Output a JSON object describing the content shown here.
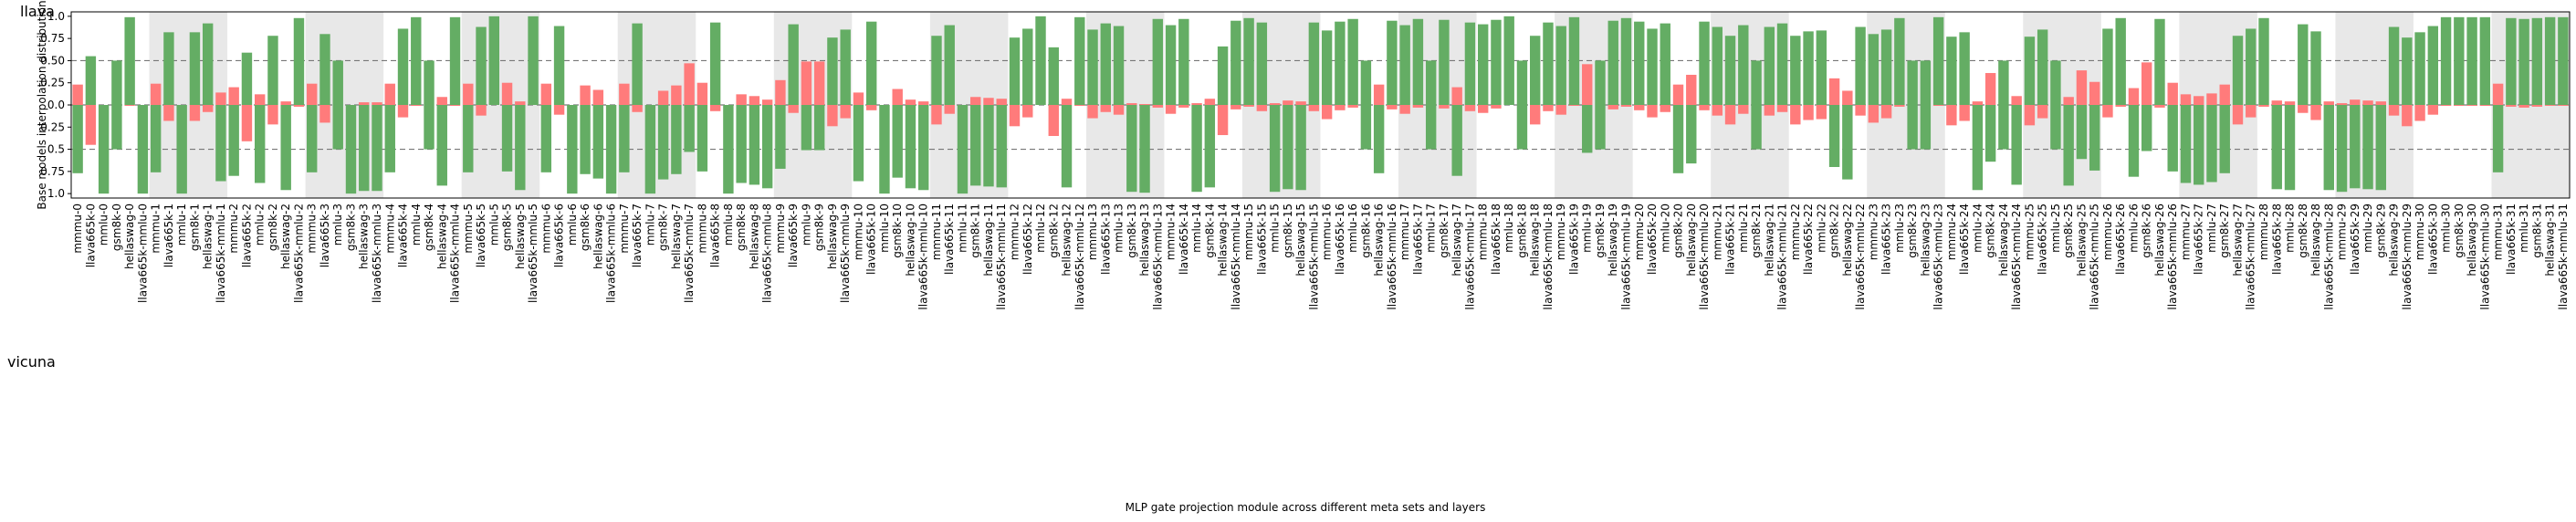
{
  "chart_data": {
    "type": "diverging_bar",
    "ylabel": "Base models interpolation distribution",
    "xlabel": "MLP gate projection module across different meta sets and layers",
    "categories": [
      "mmmu-0",
      "llava665k-0",
      "mmlu-0",
      "gsm8k-0",
      "hellaswag-0",
      "llava665k-mmlu-0",
      "mmmu-1",
      "llava665k-1",
      "mmlu-1",
      "gsm8k-1",
      "hellaswag-1",
      "llava665k-mmlu-1",
      "mmmu-2",
      "llava665k-2",
      "mmlu-2",
      "gsm8k-2",
      "hellaswag-2",
      "llava665k-mmlu-2",
      "mmmu-3",
      "llava665k-3",
      "mmlu-3",
      "gsm8k-3",
      "hellaswag-3",
      "llava665k-mmlu-3",
      "mmmu-4",
      "llava665k-4",
      "mmlu-4",
      "gsm8k-4",
      "hellaswag-4",
      "llava665k-mmlu-4",
      "mmmu-5",
      "llava665k-5",
      "mmlu-5",
      "gsm8k-5",
      "hellaswag-5",
      "llava665k-mmlu-5",
      "mmmu-6",
      "llava665k-6",
      "mmlu-6",
      "gsm8k-6",
      "hellaswag-6",
      "llava665k-mmlu-6",
      "mmmu-7",
      "llava665k-7",
      "mmlu-7",
      "gsm8k-7",
      "hellaswag-7",
      "llava665k-mmlu-7",
      "mmmu-8",
      "llava665k-8",
      "mmlu-8",
      "gsm8k-8",
      "hellaswag-8",
      "llava665k-mmlu-8",
      "mmmu-9",
      "llava665k-9",
      "mmlu-9",
      "gsm8k-9",
      "hellaswag-9",
      "llava665k-mmlu-9",
      "mmmu-10",
      "llava665k-10",
      "mmlu-10",
      "gsm8k-10",
      "hellaswag-10",
      "llava665k-mmlu-10",
      "mmmu-11",
      "llava665k-11",
      "mmlu-11",
      "gsm8k-11",
      "hellaswag-11",
      "llava665k-mmlu-11",
      "mmmu-12",
      "llava665k-12",
      "mmlu-12",
      "gsm8k-12",
      "hellaswag-12",
      "llava665k-mmlu-12",
      "mmmu-13",
      "llava665k-13",
      "mmlu-13",
      "gsm8k-13",
      "hellaswag-13",
      "llava665k-mmlu-13",
      "mmmu-14",
      "llava665k-14",
      "mmlu-14",
      "gsm8k-14",
      "hellaswag-14",
      "llava665k-mmlu-14",
      "mmmu-15",
      "llava665k-15",
      "mmlu-15",
      "gsm8k-15",
      "hellaswag-15",
      "llava665k-mmlu-15",
      "mmmu-16",
      "llava665k-16",
      "mmlu-16",
      "gsm8k-16",
      "hellaswag-16",
      "llava665k-mmlu-16",
      "mmmu-17",
      "llava665k-17",
      "mmlu-17",
      "gsm8k-17",
      "hellaswag-17",
      "llava665k-mmlu-17",
      "mmmu-18",
      "llava665k-18",
      "mmlu-18",
      "gsm8k-18",
      "hellaswag-18",
      "llava665k-mmlu-18",
      "mmmu-19",
      "llava665k-19",
      "mmlu-19",
      "gsm8k-19",
      "hellaswag-19",
      "llava665k-mmlu-19",
      "mmmu-20",
      "llava665k-20",
      "mmlu-20",
      "gsm8k-20",
      "hellaswag-20",
      "llava665k-mmlu-20",
      "mmmu-21",
      "llava665k-21",
      "mmlu-21",
      "gsm8k-21",
      "hellaswag-21",
      "llava665k-mmlu-21",
      "mmmu-22",
      "llava665k-22",
      "mmlu-22",
      "gsm8k-22",
      "hellaswag-22",
      "llava665k-mmlu-22",
      "mmmu-23",
      "llava665k-23",
      "mmlu-23",
      "gsm8k-23",
      "hellaswag-23",
      "llava665k-mmlu-23",
      "mmmu-24",
      "llava665k-24",
      "mmlu-24",
      "gsm8k-24",
      "hellaswag-24",
      "llava665k-mmlu-24",
      "mmmu-25",
      "llava665k-25",
      "mmlu-25",
      "gsm8k-25",
      "hellaswag-25",
      "llava665k-mmlu-25",
      "mmmu-26",
      "llava665k-26",
      "mmlu-26",
      "gsm8k-26",
      "hellaswag-26",
      "llava665k-mmlu-26",
      "mmmu-27",
      "llava665k-27",
      "mmlu-27",
      "gsm8k-27",
      "hellaswag-27",
      "llava665k-mmlu-27",
      "mmmu-28",
      "llava665k-28",
      "mmlu-28",
      "gsm8k-28",
      "hellaswag-28",
      "llava665k-mmlu-28",
      "mmmu-29",
      "llava665k-29",
      "mmlu-29",
      "gsm8k-29",
      "hellaswag-29",
      "llava665k-mmlu-29",
      "mmmu-30",
      "llava665k-30",
      "mmlu-30",
      "gsm8k-30",
      "hellaswag-30",
      "llava665k-mmlu-30",
      "mmmu-31",
      "llava665k-31",
      "mmlu-31",
      "gsm8k-31",
      "hellaswag-31",
      "llava665k-mmlu-31"
    ],
    "series": [
      {
        "name": "llava",
        "values": [
          0.23,
          0.55,
          0,
          0.5,
          0.99,
          0,
          0.24,
          0.82,
          0,
          0.82,
          0.92,
          0.14,
          0.2,
          0.59,
          0.12,
          0.78,
          0.04,
          0.98,
          0.24,
          0.8,
          0.5,
          0,
          0.03,
          0.03,
          0.24,
          0.86,
          0.99,
          0.5,
          0.09,
          0.99,
          0.24,
          0.88,
          1.0,
          0.25,
          0.04,
          1.0,
          0.24,
          0.89,
          0,
          0.22,
          0.17,
          0,
          0.24,
          0.92,
          0,
          0.16,
          0.22,
          0.47,
          0.25,
          0.93,
          0,
          0.12,
          0.1,
          0.06,
          0.28,
          0.91,
          0.49,
          0.49,
          0.76,
          0.85,
          0.14,
          0.94,
          0,
          0.18,
          0.06,
          0.04,
          0.78,
          0.9,
          0,
          0.09,
          0.08,
          0.07,
          0.76,
          0.86,
          1.0,
          0.65,
          0.07,
          0.99,
          0.85,
          0.92,
          0.89,
          0.02,
          0.01,
          0.97,
          0.9,
          0.97,
          0.02,
          0.07,
          0.66,
          0.95,
          0.98,
          0.93,
          0.02,
          0.05,
          0.04,
          0.93,
          0.84,
          0.94,
          0.97,
          0.5,
          0.23,
          0.95,
          0.9,
          0.97,
          0.5,
          0.96,
          0.2,
          0.93,
          0.91,
          0.96,
          1.0,
          0.5,
          0.78,
          0.93,
          0.89,
          0.99,
          0.46,
          0.5,
          0.95,
          0.98,
          0.94,
          0.86,
          0.92,
          0.23,
          0.34,
          0.94,
          0.88,
          0.78,
          0.9,
          0.5,
          0.88,
          0.92,
          0.78,
          0.83,
          0.84,
          0.3,
          0.16,
          0.88,
          0.8,
          0.85,
          0.98,
          0.5,
          0.5,
          0.99,
          0.77,
          0.82,
          0.04,
          0.36,
          0.5,
          0.1,
          0.77,
          0.85,
          0.5,
          0.09,
          0.39,
          0.26,
          0.86,
          0.98,
          0.19,
          0.48,
          0.97,
          0.25,
          0.12,
          0.1,
          0.13,
          0.23,
          0.78,
          0.86,
          0.98,
          0.05,
          0.04,
          0.91,
          0.83,
          0.04,
          0.02,
          0.06,
          0.05,
          0.04,
          0.88,
          0.76,
          0.82,
          0.89,
          0.99,
          0.99,
          0.99,
          0.99,
          0.24,
          0.98,
          0.97,
          0.98,
          0.99,
          0.99
        ]
      },
      {
        "name": "vicuna",
        "values": [
          -0.77,
          -0.45,
          -1.0,
          -0.5,
          -0.01,
          -1.0,
          -0.76,
          -0.18,
          -1.0,
          -0.18,
          -0.08,
          -0.86,
          -0.8,
          -0.41,
          -0.88,
          -0.22,
          -0.96,
          -0.02,
          -0.76,
          -0.2,
          -0.5,
          -1.0,
          -0.97,
          -0.97,
          -0.76,
          -0.14,
          -0.01,
          -0.5,
          -0.91,
          -0.01,
          -0.76,
          -0.12,
          0,
          -0.75,
          -0.96,
          0,
          -0.76,
          -0.11,
          -1.0,
          -0.78,
          -0.83,
          -1.0,
          -0.76,
          -0.08,
          -1.0,
          -0.84,
          -0.78,
          -0.53,
          -0.75,
          -0.07,
          -1.0,
          -0.88,
          -0.9,
          -0.94,
          -0.72,
          -0.09,
          -0.51,
          -0.51,
          -0.24,
          -0.15,
          -0.86,
          -0.06,
          -1.0,
          -0.82,
          -0.94,
          -0.96,
          -0.22,
          -0.1,
          -1.0,
          -0.91,
          -0.92,
          -0.93,
          -0.24,
          -0.14,
          0,
          -0.35,
          -0.93,
          -0.01,
          -0.15,
          -0.08,
          -0.11,
          -0.98,
          -0.99,
          -0.03,
          -0.1,
          -0.03,
          -0.98,
          -0.93,
          -0.34,
          -0.05,
          -0.02,
          -0.07,
          -0.98,
          -0.95,
          -0.96,
          -0.07,
          -0.16,
          -0.06,
          -0.03,
          -0.5,
          -0.77,
          -0.05,
          -0.1,
          -0.03,
          -0.5,
          -0.04,
          -0.8,
          -0.07,
          -0.09,
          -0.04,
          0,
          -0.5,
          -0.22,
          -0.07,
          -0.11,
          -0.01,
          -0.54,
          -0.5,
          -0.05,
          -0.02,
          -0.06,
          -0.14,
          -0.08,
          -0.77,
          -0.66,
          -0.06,
          -0.12,
          -0.22,
          -0.1,
          -0.5,
          -0.12,
          -0.08,
          -0.22,
          -0.17,
          -0.16,
          -0.7,
          -0.84,
          -0.12,
          -0.2,
          -0.15,
          -0.02,
          -0.5,
          -0.5,
          -0.01,
          -0.23,
          -0.18,
          -0.96,
          -0.64,
          -0.5,
          -0.9,
          -0.23,
          -0.15,
          -0.5,
          -0.91,
          -0.61,
          -0.74,
          -0.14,
          -0.02,
          -0.81,
          -0.52,
          -0.03,
          -0.75,
          -0.88,
          -0.9,
          -0.87,
          -0.77,
          -0.22,
          -0.14,
          -0.02,
          -0.95,
          -0.96,
          -0.09,
          -0.17,
          -0.96,
          -0.98,
          -0.94,
          -0.95,
          -0.96,
          -0.12,
          -0.24,
          -0.18,
          -0.11,
          -0.01,
          -0.01,
          -0.01,
          -0.01,
          -0.76,
          -0.02,
          -0.03,
          -0.02,
          -0.01,
          -0.01
        ]
      }
    ],
    "above_half_color": "#64ad64",
    "below_half_color": "#ff7b7b",
    "ylim": [
      -1.05,
      1.05
    ],
    "yticks": [
      {
        "value": 1,
        "label": "1.0"
      },
      0.75,
      {
        "value": 0.5,
        "label": "0.50"
      },
      0.25,
      {
        "value": 0,
        "label": "0.0"
      },
      {
        "value": -0.25,
        "label": "0.25"
      },
      {
        "value": -0.5,
        "label": "0.5"
      },
      {
        "value": -0.75,
        "label": "0.75"
      },
      {
        "value": -1,
        "label": "1.0"
      }
    ],
    "reference_lines": [
      0.5,
      0,
      -0.5
    ]
  }
}
